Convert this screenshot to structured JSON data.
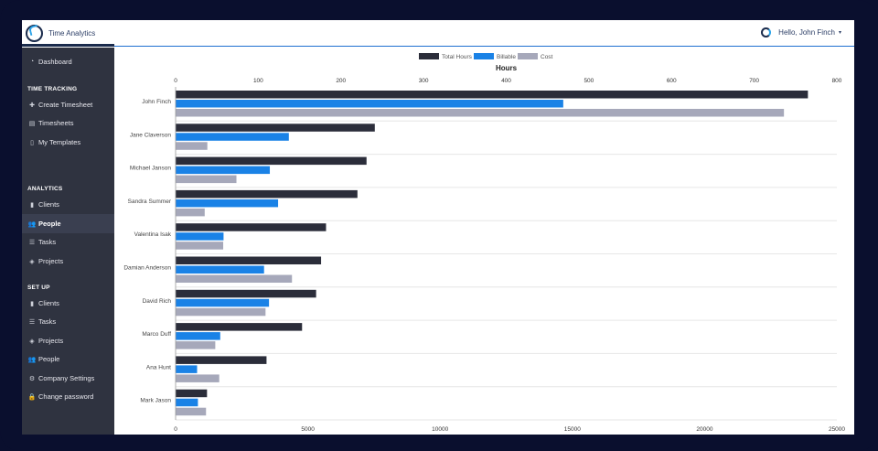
{
  "app": {
    "title": "Time Analytics"
  },
  "header": {
    "greeting": "Hello, John Finch",
    "caret": "▾"
  },
  "sidebar": {
    "dashboard": {
      "label": "Dashboard",
      "icon": "tachometer-icon"
    },
    "sections": [
      {
        "heading": "TIME TRACKING",
        "items": [
          {
            "label": "Create Timesheet",
            "icon": "plus-icon"
          },
          {
            "label": "Timesheets",
            "icon": "table-icon"
          },
          {
            "label": "My Templates",
            "icon": "file-icon"
          }
        ]
      },
      {
        "heading": "ANALYTICS",
        "items": [
          {
            "label": "Clients",
            "icon": "building-icon"
          },
          {
            "label": "People",
            "icon": "users-icon",
            "active": true
          },
          {
            "label": "Tasks",
            "icon": "list-icon"
          },
          {
            "label": "Projects",
            "icon": "tags-icon"
          }
        ]
      },
      {
        "heading": "SET UP",
        "items": [
          {
            "label": "Clients",
            "icon": "building-icon"
          },
          {
            "label": "Tasks",
            "icon": "list-icon"
          },
          {
            "label": "Projects",
            "icon": "tags-icon"
          },
          {
            "label": "People",
            "icon": "users-icon"
          },
          {
            "label": "Company Settings",
            "icon": "gear-icon"
          },
          {
            "label": "Change password",
            "icon": "lock-icon"
          }
        ]
      }
    ]
  },
  "chart_data": {
    "type": "bar",
    "orientation": "horizontal",
    "title": "Hours",
    "colors": {
      "Total Hours": "#2b2d3a",
      "Billable": "#1a82e6",
      "Cost": "#a6a8ba"
    },
    "categories": [
      "John Finch",
      "Jane Claverson",
      "Michael Janson",
      "Sandra  Summer",
      "Valentina Isak",
      "Damian Anderson",
      "David  Rich",
      "Marco Duff",
      "Ana Hunt",
      "Mark Jason"
    ],
    "series": [
      {
        "name": "Total Hours",
        "axis": "top",
        "values": [
          765,
          241,
          231,
          220,
          182,
          176,
          170,
          153,
          110,
          38
        ]
      },
      {
        "name": "Billable",
        "axis": "top",
        "values": [
          469,
          137,
          114,
          124,
          58,
          107,
          113,
          54,
          26,
          27
        ]
      },
      {
        "name": "Cost",
        "axis": "bottom",
        "values": [
          23000,
          1200,
          2300,
          1100,
          1800,
          4400,
          3400,
          1500,
          1650,
          1150
        ]
      }
    ],
    "top_axis": {
      "label": "Hours",
      "range": [
        0,
        800
      ],
      "ticks": [
        "0",
        "100",
        "200",
        "300",
        "400",
        "500",
        "600",
        "700",
        "800"
      ]
    },
    "bottom_axis": {
      "range": [
        0,
        25000
      ],
      "ticks": [
        "0",
        "5000",
        "10000",
        "15000",
        "20000",
        "25000"
      ]
    },
    "legend_position": "top"
  }
}
